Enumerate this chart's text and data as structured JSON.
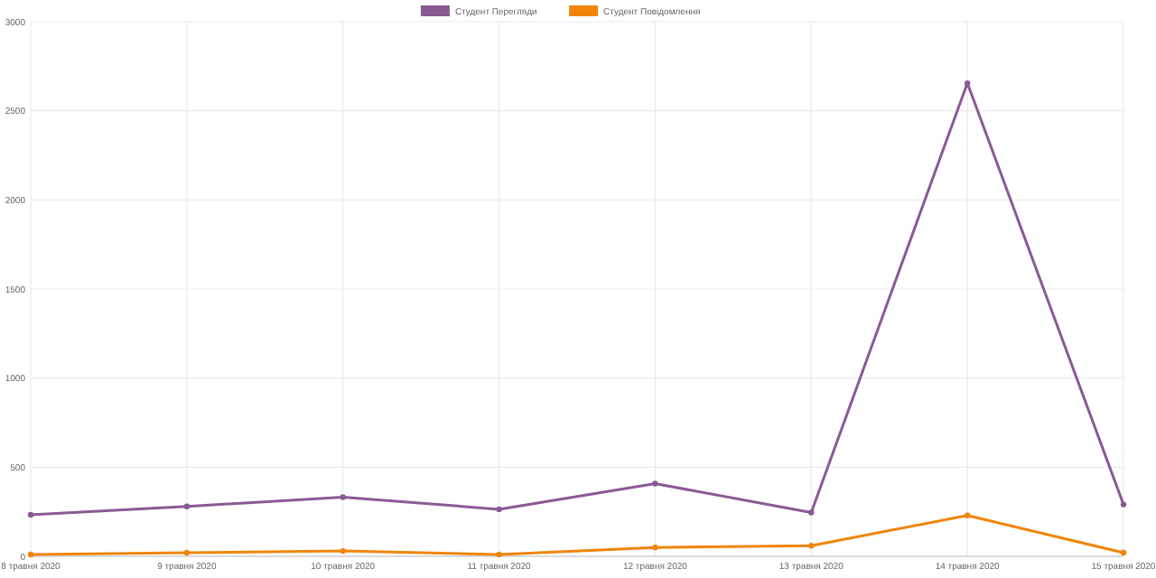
{
  "chart_data": {
    "type": "line",
    "categories": [
      "8 травня 2020",
      "9 травня 2020",
      "10 травня 2020",
      "11 травня 2020",
      "12 травня 2020",
      "13 травня 2020",
      "14 травня 2020",
      "15 травня 2020"
    ],
    "series": [
      {
        "name": "Студент Перегляди",
        "color": "#8a5a94",
        "values": [
          233,
          280,
          332,
          264,
          408,
          246,
          2655,
          291
        ]
      },
      {
        "name": "Студент Повідомлення",
        "color": "#f0850a",
        "values": [
          10,
          20,
          30,
          10,
          50,
          60,
          229,
          20
        ]
      }
    ],
    "ylim": [
      0,
      3000
    ],
    "yticks": [
      0,
      500,
      1000,
      1500,
      2000,
      2500,
      3000
    ],
    "grid": true,
    "legend": "top",
    "marker": "circle",
    "line_style": "solid"
  }
}
